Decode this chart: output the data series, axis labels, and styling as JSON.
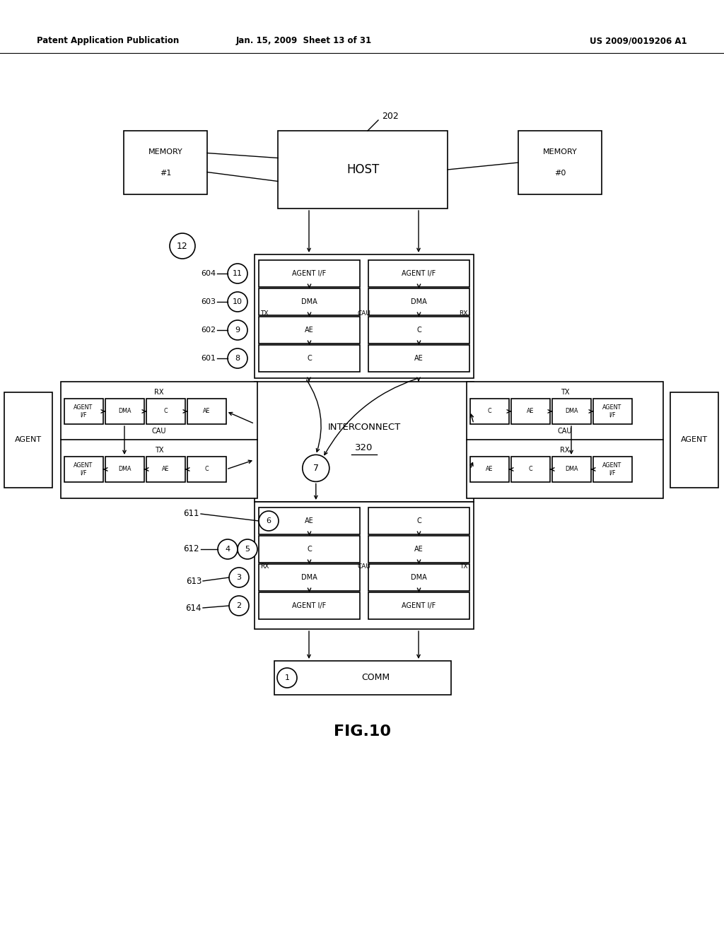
{
  "bg": "#ffffff",
  "header_left": "Patent Application Publication",
  "header_mid": "Jan. 15, 2009  Sheet 13 of 31",
  "header_right": "US 2009/0019206 A1",
  "fig_label": "FIG.10",
  "lw": 1.2
}
